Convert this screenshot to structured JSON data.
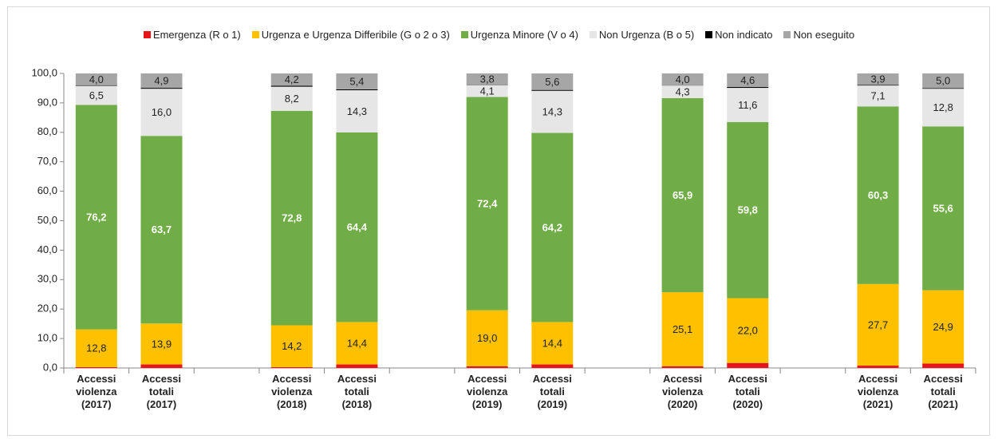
{
  "chart_data": {
    "type": "stacked-bar",
    "categories": [
      "Accessi violenza (2017)",
      "Accessi totali (2017)",
      null,
      "Accessi violenza (2018)",
      "Accessi totali (2018)",
      null,
      "Accessi violenza (2019)",
      "Accessi totali (2019)",
      null,
      "Accessi violenza (2020)",
      "Accessi totali (2020)",
      null,
      "Accessi violenza (2021)",
      "Accessi totali (2021)"
    ],
    "series": [
      {
        "name": "Emergenza (R o 1)",
        "color": "#e8141c",
        "values": [
          0.3,
          1.2,
          null,
          0.3,
          1.2,
          null,
          0.6,
          1.2,
          null,
          0.6,
          1.7,
          null,
          0.8,
          1.5
        ]
      },
      {
        "name": "Urgenza e Urgenza Differibile (G o 2 o 3)",
        "color": "#ffc000",
        "values": [
          12.8,
          13.9,
          null,
          14.2,
          14.4,
          null,
          19.0,
          14.4,
          null,
          25.1,
          22.0,
          null,
          27.7,
          24.9
        ],
        "value_labels": [
          "12,8",
          "13,9",
          null,
          "14,2",
          "14,4",
          null,
          "19,0",
          "14,4",
          null,
          "25,1",
          "22,0",
          null,
          "27,7",
          "24,9"
        ]
      },
      {
        "name": "Urgenza Minore (V o 4)",
        "color": "#70ad47",
        "values": [
          76.2,
          63.7,
          null,
          72.8,
          64.4,
          null,
          72.4,
          64.2,
          null,
          65.9,
          59.8,
          null,
          60.3,
          55.6
        ],
        "value_labels": [
          "76,2",
          "63,7",
          null,
          "72,8",
          "64,4",
          null,
          "72,4",
          "64,2",
          null,
          "65,9",
          "59,8",
          null,
          "60,3",
          "55,6"
        ]
      },
      {
        "name": "Non Urgenza (B o 5)",
        "color": "#e6e6e6",
        "values": [
          6.5,
          16.0,
          null,
          8.2,
          14.3,
          null,
          4.1,
          14.3,
          null,
          4.3,
          11.6,
          null,
          7.1,
          12.8
        ],
        "value_labels": [
          "6,5",
          "16,0",
          null,
          "8,2",
          "14,3",
          null,
          "4,1",
          "14,3",
          null,
          "4,3",
          "11,6",
          null,
          "7,1",
          "12,8"
        ]
      },
      {
        "name": "Non indicato",
        "color": "#000000",
        "values": [
          0.2,
          0.3,
          null,
          0.3,
          0.3,
          null,
          0.1,
          0.3,
          null,
          0.1,
          0.3,
          null,
          0.2,
          0.2
        ]
      },
      {
        "name": "Non eseguito",
        "color": "#a6a6a6",
        "values": [
          4.0,
          4.9,
          null,
          4.2,
          5.4,
          null,
          3.8,
          5.6,
          null,
          4.0,
          4.6,
          null,
          3.9,
          5.0
        ],
        "value_labels": [
          "4,0",
          "4,9",
          null,
          "4,2",
          "5,4",
          null,
          "3,8",
          "5,6",
          null,
          "4,0",
          "4,6",
          null,
          "3,9",
          "5,0"
        ]
      }
    ],
    "ylim": [
      0,
      100
    ],
    "yticks": [
      {
        "value": 0,
        "label": "0,0"
      },
      {
        "value": 10,
        "label": "10,0"
      },
      {
        "value": 20,
        "label": "20,0"
      },
      {
        "value": 30,
        "label": "30,0"
      },
      {
        "value": 40,
        "label": "40,0"
      },
      {
        "value": 50,
        "label": "50,0"
      },
      {
        "value": 60,
        "label": "60,0"
      },
      {
        "value": 70,
        "label": "70,0"
      },
      {
        "value": 80,
        "label": "80,0"
      },
      {
        "value": 90,
        "label": "90,0"
      },
      {
        "value": 100,
        "label": "100,0"
      }
    ],
    "legend": "top"
  }
}
